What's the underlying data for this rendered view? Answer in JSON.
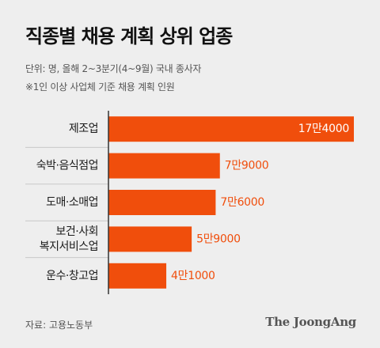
{
  "header": {
    "title": "직종별 채용 계획 상위 업종",
    "unit_note": "단위: 명, 올해 2~3분기(4~9월) 국내 종사자",
    "scope_note": "※1인 이상 사업체 기준 채용 계획 인원"
  },
  "chart_data": {
    "type": "bar",
    "orientation": "horizontal",
    "title": "직종별 채용 계획 상위 업종",
    "categories": [
      [
        "제조업"
      ],
      [
        "숙박·음식점업"
      ],
      [
        "도매·소매업"
      ],
      [
        "보건·사회",
        "복지서비스업"
      ],
      [
        "운수·창고업"
      ]
    ],
    "values": [
      174000,
      79000,
      76000,
      59000,
      41000
    ],
    "value_labels": [
      "17만4000",
      "7만9000",
      "7만6000",
      "5만9000",
      "4만1000"
    ],
    "xlim": [
      0,
      174000
    ],
    "grid": false,
    "legend": "none"
  },
  "footer": {
    "source": "자료: 고용노동부",
    "brand": "The JoongAng"
  },
  "colors": {
    "background": "#eeeeee",
    "bar": "#f04e0c",
    "label_in_bar": "#ffffff",
    "label_outside": "#f04e0c",
    "axis": "#333333",
    "separator": "#c8c8c8"
  }
}
